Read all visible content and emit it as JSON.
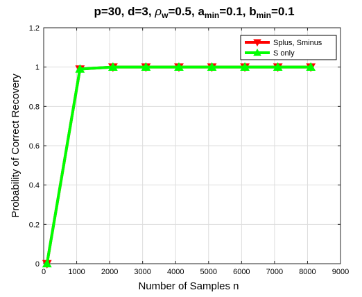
{
  "chart_data": {
    "type": "line",
    "title_parts": {
      "p1": "p=30,  d=3, ",
      "rho": "ρ",
      "rho_sub": "w",
      "p2": "=0.5, a",
      "a_sub": "min",
      "p3": "=0.1, b",
      "b_sub": "min",
      "p4": "=0.1"
    },
    "xlabel": "Number of Samples n",
    "ylabel": "Probability of Correct Recovery",
    "xlim": [
      0,
      9000
    ],
    "ylim": [
      0,
      1.2
    ],
    "xticks": [
      "0",
      "1000",
      "2000",
      "3000",
      "4000",
      "5000",
      "6000",
      "7000",
      "8000",
      "9000"
    ],
    "yticks": [
      "0",
      "0.2",
      "0.4",
      "0.6",
      "0.8",
      "1",
      "1.2"
    ],
    "grid": true,
    "legend_position": "top-right",
    "x": [
      100,
      1100,
      2100,
      3100,
      4100,
      5100,
      6100,
      7100,
      8100
    ],
    "series": [
      {
        "name": "Splus, Sminus",
        "color": "#ff0000",
        "marker": "triangle-down",
        "values": [
          0,
          0.99,
          1,
          1,
          1,
          1,
          1,
          1,
          1
        ]
      },
      {
        "name": "S only",
        "color": "#00ff00",
        "marker": "triangle-up",
        "values": [
          0,
          0.99,
          1,
          1,
          1,
          1,
          1,
          1,
          1
        ]
      }
    ]
  }
}
